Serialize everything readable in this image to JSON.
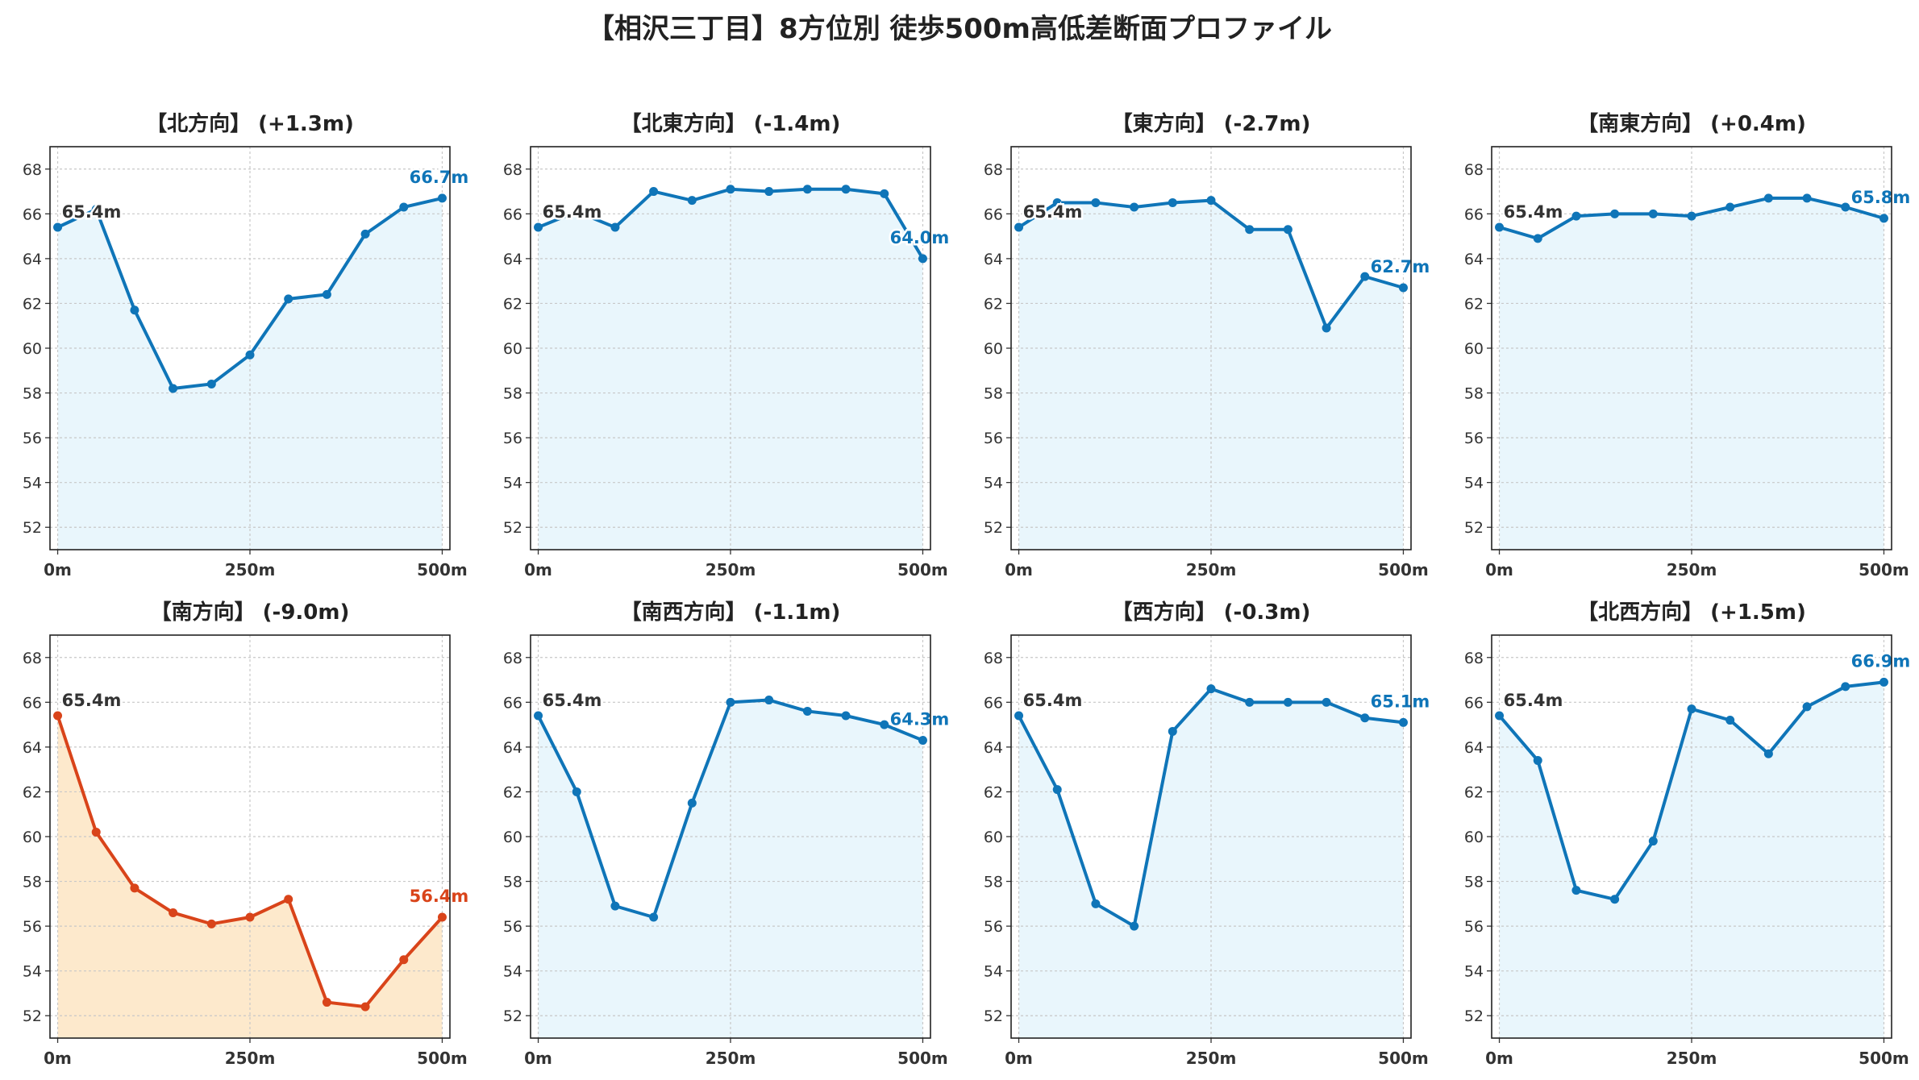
{
  "title": "【相沢三丁目】8方位別 徒歩500m高低差断面プロファイル",
  "colors": {
    "normal_line": "#0f75b8",
    "normal_fill": "#e9f6fc",
    "warning_line": "#d9441a",
    "warning_fill": "#fde9cc",
    "start_label": "#333333",
    "grid": "#c8c8c8"
  },
  "chart_data": [
    {
      "type": "line",
      "title": "【北方向】 (+1.3m)",
      "start_label": "65.4m",
      "end_label": "66.7m",
      "warning": false,
      "x": [
        0,
        50,
        100,
        150,
        200,
        250,
        300,
        350,
        400,
        450,
        500
      ],
      "values": [
        65.4,
        66.2,
        61.7,
        58.2,
        58.4,
        59.7,
        62.2,
        62.4,
        65.1,
        66.3,
        66.7
      ],
      "x_ticks": [
        "0m",
        "250m",
        "500m"
      ],
      "y_ticks": [
        52,
        54,
        56,
        58,
        60,
        62,
        64,
        66,
        68
      ],
      "ylim": [
        51,
        69
      ],
      "xlim": [
        -10,
        510
      ],
      "grid": true
    },
    {
      "type": "line",
      "title": "【北東方向】 (-1.4m)",
      "start_label": "65.4m",
      "end_label": "64.0m",
      "warning": false,
      "x": [
        0,
        50,
        100,
        150,
        200,
        250,
        300,
        350,
        400,
        450,
        500
      ],
      "values": [
        65.4,
        66.1,
        65.4,
        67.0,
        66.6,
        67.1,
        67.0,
        67.1,
        67.1,
        66.9,
        64.0
      ],
      "x_ticks": [
        "0m",
        "250m",
        "500m"
      ],
      "y_ticks": [
        52,
        54,
        56,
        58,
        60,
        62,
        64,
        66,
        68
      ],
      "ylim": [
        51,
        69
      ],
      "xlim": [
        -10,
        510
      ],
      "grid": true
    },
    {
      "type": "line",
      "title": "【東方向】 (-2.7m)",
      "start_label": "65.4m",
      "end_label": "62.7m",
      "warning": false,
      "x": [
        0,
        50,
        100,
        150,
        200,
        250,
        300,
        350,
        400,
        450,
        500
      ],
      "values": [
        65.4,
        66.5,
        66.5,
        66.3,
        66.5,
        66.6,
        65.3,
        65.3,
        60.9,
        63.2,
        62.7
      ],
      "x_ticks": [
        "0m",
        "250m",
        "500m"
      ],
      "y_ticks": [
        52,
        54,
        56,
        58,
        60,
        62,
        64,
        66,
        68
      ],
      "ylim": [
        51,
        69
      ],
      "xlim": [
        -10,
        510
      ],
      "grid": true
    },
    {
      "type": "line",
      "title": "【南東方向】 (+0.4m)",
      "start_label": "65.4m",
      "end_label": "65.8m",
      "warning": false,
      "x": [
        0,
        50,
        100,
        150,
        200,
        250,
        300,
        350,
        400,
        450,
        500
      ],
      "values": [
        65.4,
        64.9,
        65.9,
        66.0,
        66.0,
        65.9,
        66.3,
        66.7,
        66.7,
        66.3,
        65.8
      ],
      "x_ticks": [
        "0m",
        "250m",
        "500m"
      ],
      "y_ticks": [
        52,
        54,
        56,
        58,
        60,
        62,
        64,
        66,
        68
      ],
      "ylim": [
        51,
        69
      ],
      "xlim": [
        -10,
        510
      ],
      "grid": true
    },
    {
      "type": "area",
      "title": "【南方向】 (-9.0m)",
      "start_label": "65.4m",
      "end_label": "56.4m",
      "warning": true,
      "x": [
        0,
        50,
        100,
        150,
        200,
        250,
        300,
        350,
        400,
        450,
        500
      ],
      "values": [
        65.4,
        60.2,
        57.7,
        56.6,
        56.1,
        56.4,
        57.2,
        52.6,
        52.4,
        54.5,
        56.4
      ],
      "x_ticks": [
        "0m",
        "250m",
        "500m"
      ],
      "y_ticks": [
        52,
        54,
        56,
        58,
        60,
        62,
        64,
        66,
        68
      ],
      "ylim": [
        51,
        69
      ],
      "xlim": [
        -10,
        510
      ],
      "grid": true
    },
    {
      "type": "line",
      "title": "【南西方向】 (-1.1m)",
      "start_label": "65.4m",
      "end_label": "64.3m",
      "warning": false,
      "x": [
        0,
        50,
        100,
        150,
        200,
        250,
        300,
        350,
        400,
        450,
        500
      ],
      "values": [
        65.4,
        62.0,
        56.9,
        56.4,
        61.5,
        66.0,
        66.1,
        65.6,
        65.4,
        65.0,
        64.3
      ],
      "x_ticks": [
        "0m",
        "250m",
        "500m"
      ],
      "y_ticks": [
        52,
        54,
        56,
        58,
        60,
        62,
        64,
        66,
        68
      ],
      "ylim": [
        51,
        69
      ],
      "xlim": [
        -10,
        510
      ],
      "grid": true
    },
    {
      "type": "line",
      "title": "【西方向】 (-0.3m)",
      "start_label": "65.4m",
      "end_label": "65.1m",
      "warning": false,
      "x": [
        0,
        50,
        100,
        150,
        200,
        250,
        300,
        350,
        400,
        450,
        500
      ],
      "values": [
        65.4,
        62.1,
        57.0,
        56.0,
        64.7,
        66.6,
        66.0,
        66.0,
        66.0,
        65.3,
        65.1
      ],
      "x_ticks": [
        "0m",
        "250m",
        "500m"
      ],
      "y_ticks": [
        52,
        54,
        56,
        58,
        60,
        62,
        64,
        66,
        68
      ],
      "ylim": [
        51,
        69
      ],
      "xlim": [
        -10,
        510
      ],
      "grid": true
    },
    {
      "type": "line",
      "title": "【北西方向】 (+1.5m)",
      "start_label": "65.4m",
      "end_label": "66.9m",
      "warning": false,
      "x": [
        0,
        50,
        100,
        150,
        200,
        250,
        300,
        350,
        400,
        450,
        500
      ],
      "values": [
        65.4,
        63.4,
        57.6,
        57.2,
        59.8,
        65.7,
        65.2,
        63.7,
        65.8,
        66.7,
        66.9
      ],
      "x_ticks": [
        "0m",
        "250m",
        "500m"
      ],
      "y_ticks": [
        52,
        54,
        56,
        58,
        60,
        62,
        64,
        66,
        68
      ],
      "ylim": [
        51,
        69
      ],
      "xlim": [
        -10,
        510
      ],
      "grid": true
    }
  ]
}
